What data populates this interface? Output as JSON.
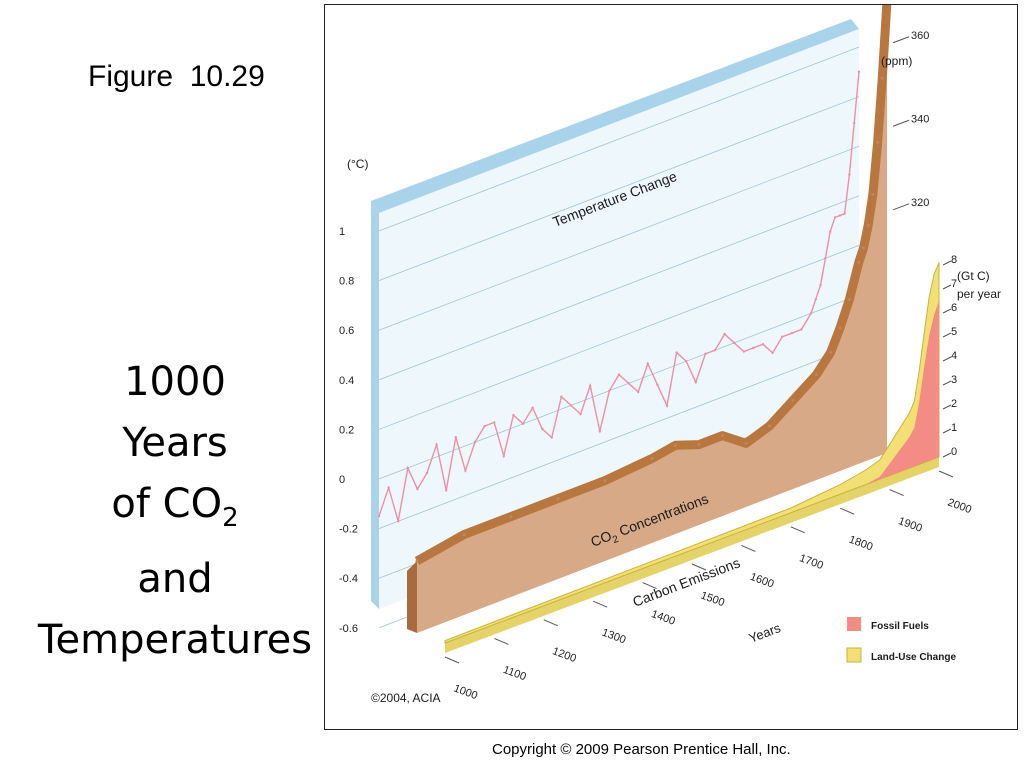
{
  "slide": {
    "figure_label": "Figure  10.29",
    "title_lines": [
      "1000",
      "Years",
      "of CO",
      "and",
      "Temperatures"
    ],
    "title_subscript": "2",
    "footer": "Copyright © 2009 Pearson Prentice Hall, Inc."
  },
  "chart_data": {
    "type": "area",
    "credit": "©2004, ACIA",
    "x_axis": {
      "label": "Years",
      "ticks": [
        "1000",
        "1100",
        "1200",
        "1300",
        "1400",
        "1500",
        "1600",
        "1700",
        "1800",
        "1900",
        "2000"
      ],
      "range": [
        1000,
        2000
      ]
    },
    "temperature": {
      "title": "Temperature Change",
      "unit": "(°C)",
      "ticks": [
        "1",
        "0.8",
        "0.6",
        "0.4",
        "0.2",
        "0",
        "-0.2",
        "-0.4",
        "-0.6"
      ],
      "range": [
        -0.6,
        1
      ],
      "color": "#f08fa3",
      "years": [
        1000,
        1020,
        1040,
        1060,
        1080,
        1100,
        1120,
        1140,
        1160,
        1180,
        1200,
        1220,
        1240,
        1260,
        1280,
        1300,
        1320,
        1340,
        1360,
        1380,
        1400,
        1420,
        1440,
        1460,
        1480,
        1500,
        1520,
        1540,
        1560,
        1580,
        1600,
        1620,
        1640,
        1660,
        1680,
        1700,
        1720,
        1740,
        1760,
        1780,
        1800,
        1820,
        1840,
        1860,
        1880,
        1900,
        1910,
        1920,
        1930,
        1940,
        1950,
        1960,
        1970,
        1980,
        1990,
        2000
      ],
      "values": [
        -0.15,
        -0.05,
        -0.2,
        0.0,
        -0.1,
        -0.05,
        0.05,
        -0.15,
        0.05,
        -0.1,
        0.0,
        0.05,
        0.05,
        -0.1,
        0.05,
        0.0,
        0.05,
        -0.05,
        -0.1,
        0.05,
        0.0,
        -0.05,
        0.05,
        -0.15,
        0.0,
        0.05,
        0.0,
        -0.05,
        0.05,
        -0.05,
        -0.15,
        0.05,
        0.0,
        -0.1,
        0.0,
        0.0,
        0.05,
        0.0,
        -0.05,
        -0.05,
        -0.05,
        -0.1,
        -0.05,
        -0.05,
        -0.05,
        0.0,
        0.05,
        0.1,
        0.2,
        0.3,
        0.35,
        0.35,
        0.35,
        0.5,
        0.7,
        0.9
      ]
    },
    "co2": {
      "title": "CO2 Concentrations",
      "unit": "(ppm)",
      "ticks": [
        "360",
        "340",
        "320"
      ],
      "color": "#c6855a",
      "years": [
        1000,
        1100,
        1200,
        1300,
        1400,
        1500,
        1550,
        1600,
        1650,
        1700,
        1750,
        1800,
        1850,
        1880,
        1900,
        1920,
        1940,
        1950,
        1960,
        1970,
        1980,
        1990,
        2000
      ],
      "values": [
        279,
        281,
        281,
        281,
        281,
        282,
        283,
        281,
        281,
        277,
        279,
        283,
        287,
        291,
        296,
        302,
        310,
        313,
        318,
        325,
        337,
        352,
        370
      ]
    },
    "carbon_emissions": {
      "title": "Carbon Emissions",
      "unit": "(Gt C)",
      "unit_2": "per year",
      "ticks": [
        "8",
        "7",
        "6",
        "5",
        "4",
        "3",
        "2",
        "1",
        "0"
      ],
      "range": [
        0,
        8
      ],
      "years": [
        1000,
        1700,
        1800,
        1850,
        1880,
        1900,
        1920,
        1940,
        1950,
        1960,
        1970,
        1980,
        1990,
        2000
      ],
      "series": [
        {
          "name": "Fossil Fuels",
          "color": "#f28c84",
          "values": [
            0,
            0,
            0,
            0,
            0.1,
            0.5,
            0.9,
            1.3,
            1.6,
            2.6,
            4.0,
            5.2,
            6.0,
            6.5
          ]
        },
        {
          "name": "Land-Use Change",
          "color": "#f3e074",
          "values": [
            0.1,
            0.2,
            0.4,
            0.6,
            0.7,
            0.8,
            0.9,
            1.0,
            1.1,
            1.3,
            1.4,
            1.6,
            1.7,
            1.6
          ]
        }
      ]
    }
  }
}
